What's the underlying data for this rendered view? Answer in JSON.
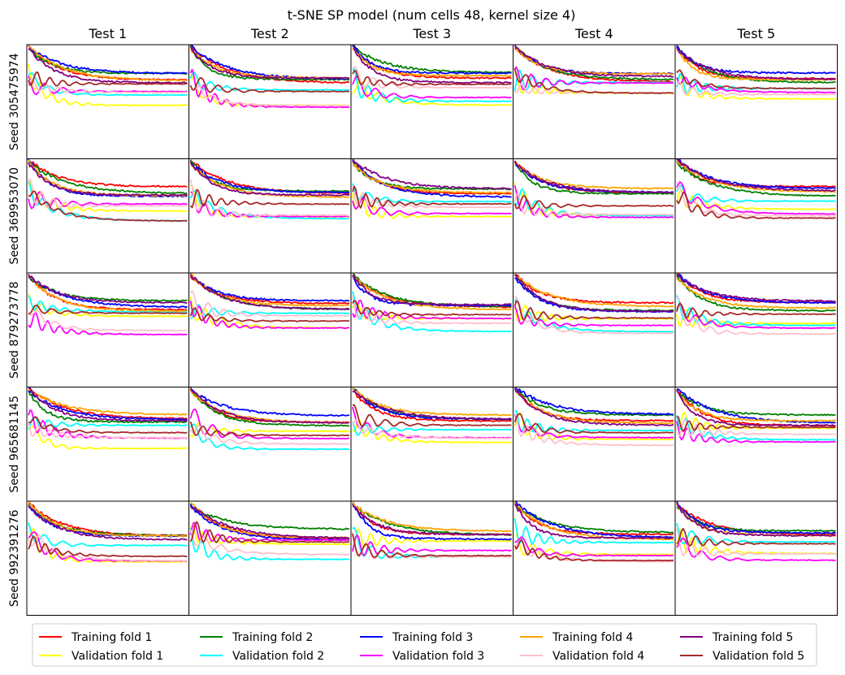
{
  "figure": {
    "title": "t-SNE SP model (num cells 48, kernel size 4)"
  },
  "chart_data": {
    "type": "line",
    "title": "t-SNE SP model (num cells 48, kernel size 4)",
    "columns": [
      "Test 1",
      "Test 2",
      "Test 3",
      "Test 4",
      "Test 5"
    ],
    "rows": [
      "Seed 305475974",
      "Seed 369953070",
      "Seed 879273778",
      "Seed 965681145",
      "Seed 992391276"
    ],
    "axes_ticks_visible": false,
    "grid": false,
    "legend_position": "bottom",
    "legend_ncols": 5,
    "series": [
      {
        "name": "Training fold 1",
        "color": "#ff0000"
      },
      {
        "name": "Validation fold 1",
        "color": "#ffff00"
      },
      {
        "name": "Training fold 2",
        "color": "#008000"
      },
      {
        "name": "Validation fold 2",
        "color": "#00ffff"
      },
      {
        "name": "Training fold 3",
        "color": "#0000ff"
      },
      {
        "name": "Validation fold 3",
        "color": "#ff00ff"
      },
      {
        "name": "Training fold 4",
        "color": "#ffa500"
      },
      {
        "name": "Validation fold 4",
        "color": "#ffc0cb"
      },
      {
        "name": "Training fold 5",
        "color": "#800080"
      },
      {
        "name": "Validation fold 5",
        "color": "#a52a2a"
      }
    ],
    "curve_shape": {
      "train": "starts high (~0.97) and decays to a plateau around 0.68-0.75",
      "validation": "starts around 0.7 with damped oscillation, settling around 0.48-0.65"
    }
  }
}
